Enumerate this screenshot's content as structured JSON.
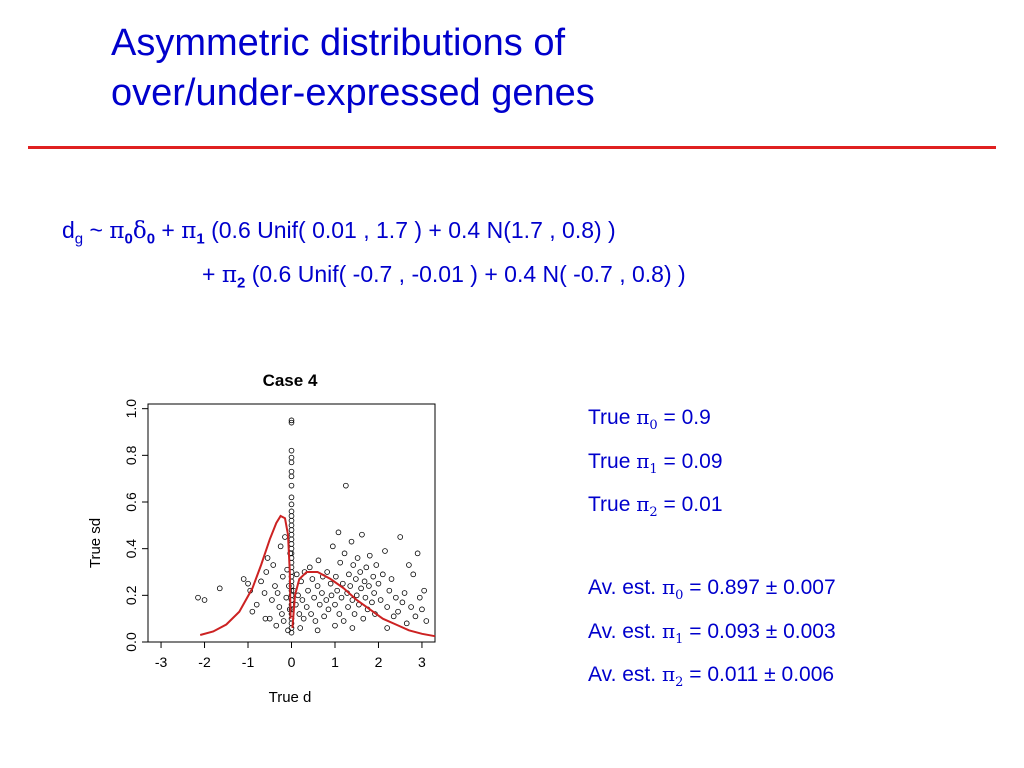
{
  "slide": {
    "title_line1": "Asymmetric distributions of",
    "title_line2": "over/under-expressed genes",
    "accent_color": "#0000cc",
    "rule_color": "#e02020"
  },
  "formula": {
    "d": "d",
    "g": "g",
    "tilde": "~",
    "pi": "π",
    "delta": "δ",
    "sub0": "0",
    "sub1": "1",
    "sub2": "2",
    "plus": "+",
    "term1": "(0.6 Unif( 0.01 , 1.7 ) + 0.4 N(1.7 , 0.8) )",
    "term2": "(0.6 Unif( -0.7 , -0.01 ) + 0.4 N( -0.7 , 0.8) )"
  },
  "true_values": [
    {
      "prefix": "True",
      "sub": "0",
      "eq": "= 0.9"
    },
    {
      "prefix": "True",
      "sub": "1",
      "eq": "= 0.09"
    },
    {
      "prefix": "True",
      "sub": "2",
      "eq": "= 0.01"
    }
  ],
  "estimates": [
    {
      "prefix": "Av. est.",
      "sub": "0",
      "eq": "= 0.897",
      "pm": "± 0.007"
    },
    {
      "prefix": "Av. est.",
      "sub": "1",
      "eq": "= 0.093",
      "pm": "± 0.003"
    },
    {
      "prefix": "Av. est.",
      "sub": "2",
      "eq": "= 0.011",
      "pm": "± 0.006"
    }
  ],
  "chart_data": {
    "type": "scatter",
    "title": "Case 4",
    "xlabel": "True d",
    "ylabel": "True sd",
    "xlim": [
      -3.3,
      3.3
    ],
    "ylim": [
      0,
      1.02
    ],
    "x_ticks": [
      "-3",
      "-2",
      "-1",
      "0",
      "1",
      "2",
      "3"
    ],
    "y_ticks": [
      "0.0",
      "0.2",
      "0.4",
      "0.6",
      "0.8",
      "1.0"
    ],
    "grid": false,
    "point_color": "#000000",
    "curve_color": "#cc2222",
    "points": [
      [
        -2.15,
        0.19
      ],
      [
        -2.0,
        0.18
      ],
      [
        -1.65,
        0.23
      ],
      [
        -1.1,
        0.27
      ],
      [
        -1.0,
        0.25
      ],
      [
        -0.95,
        0.22
      ],
      [
        -0.9,
        0.13
      ],
      [
        -0.8,
        0.16
      ],
      [
        -0.7,
        0.26
      ],
      [
        -0.62,
        0.21
      ],
      [
        -0.58,
        0.3
      ],
      [
        -0.55,
        0.36
      ],
      [
        -0.5,
        0.1
      ],
      [
        -0.45,
        0.18
      ],
      [
        -0.42,
        0.33
      ],
      [
        -0.38,
        0.24
      ],
      [
        -0.35,
        0.07
      ],
      [
        -0.32,
        0.21
      ],
      [
        -0.28,
        0.15
      ],
      [
        -0.25,
        0.41
      ],
      [
        -0.22,
        0.12
      ],
      [
        -0.2,
        0.28
      ],
      [
        -0.18,
        0.09
      ],
      [
        -0.15,
        0.45
      ],
      [
        -0.12,
        0.19
      ],
      [
        -0.1,
        0.31
      ],
      [
        -0.08,
        0.05
      ],
      [
        -0.06,
        0.24
      ],
      [
        -0.04,
        0.14
      ],
      [
        -0.03,
        0.38
      ],
      [
        0.0,
        0.94
      ],
      [
        0.0,
        0.95
      ],
      [
        0.0,
        0.82
      ],
      [
        0.0,
        0.79
      ],
      [
        0.0,
        0.77
      ],
      [
        0.0,
        0.73
      ],
      [
        0.0,
        0.71
      ],
      [
        0.0,
        0.67
      ],
      [
        0.0,
        0.62
      ],
      [
        0.0,
        0.59
      ],
      [
        0.0,
        0.56
      ],
      [
        0.0,
        0.54
      ],
      [
        0.0,
        0.52
      ],
      [
        0.0,
        0.5
      ],
      [
        0.0,
        0.48
      ],
      [
        0.0,
        0.46
      ],
      [
        0.0,
        0.44
      ],
      [
        0.0,
        0.42
      ],
      [
        0.0,
        0.4
      ],
      [
        0.0,
        0.38
      ],
      [
        0.0,
        0.36
      ],
      [
        0.0,
        0.34
      ],
      [
        0.0,
        0.32
      ],
      [
        0.0,
        0.3
      ],
      [
        0.0,
        0.28
      ],
      [
        0.0,
        0.26
      ],
      [
        0.0,
        0.24
      ],
      [
        0.0,
        0.22
      ],
      [
        0.0,
        0.2
      ],
      [
        0.0,
        0.18
      ],
      [
        0.0,
        0.16
      ],
      [
        0.0,
        0.14
      ],
      [
        0.0,
        0.12
      ],
      [
        0.0,
        0.1
      ],
      [
        0.0,
        0.08
      ],
      [
        0.0,
        0.06
      ],
      [
        0.0,
        0.04
      ],
      [
        0.05,
        0.22
      ],
      [
        0.1,
        0.16
      ],
      [
        0.12,
        0.29
      ],
      [
        0.15,
        0.2
      ],
      [
        0.18,
        0.12
      ],
      [
        0.22,
        0.26
      ],
      [
        0.25,
        0.18
      ],
      [
        0.28,
        0.1
      ],
      [
        0.3,
        0.3
      ],
      [
        0.35,
        0.15
      ],
      [
        0.38,
        0.22
      ],
      [
        0.42,
        0.32
      ],
      [
        0.45,
        0.12
      ],
      [
        0.48,
        0.27
      ],
      [
        0.52,
        0.19
      ],
      [
        0.55,
        0.09
      ],
      [
        0.6,
        0.24
      ],
      [
        0.62,
        0.35
      ],
      [
        0.65,
        0.16
      ],
      [
        0.7,
        0.21
      ],
      [
        0.72,
        0.28
      ],
      [
        0.75,
        0.11
      ],
      [
        0.8,
        0.18
      ],
      [
        0.82,
        0.3
      ],
      [
        0.85,
        0.14
      ],
      [
        0.9,
        0.25
      ],
      [
        0.92,
        0.2
      ],
      [
        0.95,
        0.41
      ],
      [
        1.0,
        0.16
      ],
      [
        1.02,
        0.28
      ],
      [
        1.05,
        0.22
      ],
      [
        1.08,
        0.47
      ],
      [
        1.1,
        0.12
      ],
      [
        1.12,
        0.34
      ],
      [
        1.15,
        0.19
      ],
      [
        1.18,
        0.25
      ],
      [
        1.2,
        0.09
      ],
      [
        1.22,
        0.38
      ],
      [
        1.25,
        0.67
      ],
      [
        1.28,
        0.21
      ],
      [
        1.3,
        0.15
      ],
      [
        1.32,
        0.29
      ],
      [
        1.35,
        0.24
      ],
      [
        1.38,
        0.43
      ],
      [
        1.4,
        0.18
      ],
      [
        1.42,
        0.33
      ],
      [
        1.45,
        0.12
      ],
      [
        1.48,
        0.27
      ],
      [
        1.5,
        0.2
      ],
      [
        1.52,
        0.36
      ],
      [
        1.55,
        0.16
      ],
      [
        1.58,
        0.3
      ],
      [
        1.6,
        0.23
      ],
      [
        1.62,
        0.46
      ],
      [
        1.65,
        0.1
      ],
      [
        1.68,
        0.26
      ],
      [
        1.7,
        0.19
      ],
      [
        1.72,
        0.32
      ],
      [
        1.75,
        0.14
      ],
      [
        1.78,
        0.24
      ],
      [
        1.8,
        0.37
      ],
      [
        1.85,
        0.17
      ],
      [
        1.88,
        0.28
      ],
      [
        1.9,
        0.21
      ],
      [
        1.92,
        0.12
      ],
      [
        1.95,
        0.33
      ],
      [
        2.0,
        0.25
      ],
      [
        2.05,
        0.18
      ],
      [
        2.1,
        0.29
      ],
      [
        2.15,
        0.39
      ],
      [
        2.2,
        0.15
      ],
      [
        2.25,
        0.22
      ],
      [
        2.3,
        0.27
      ],
      [
        2.35,
        0.11
      ],
      [
        2.4,
        0.19
      ],
      [
        2.45,
        0.13
      ],
      [
        2.5,
        0.45
      ],
      [
        2.55,
        0.17
      ],
      [
        2.6,
        0.21
      ],
      [
        2.65,
        0.08
      ],
      [
        2.7,
        0.33
      ],
      [
        2.75,
        0.15
      ],
      [
        2.8,
        0.29
      ],
      [
        2.85,
        0.11
      ],
      [
        2.9,
        0.38
      ],
      [
        2.95,
        0.19
      ],
      [
        3.0,
        0.14
      ],
      [
        3.05,
        0.22
      ],
      [
        3.1,
        0.09
      ],
      [
        0.6,
        0.05
      ],
      [
        1.0,
        0.07
      ],
      [
        1.4,
        0.06
      ],
      [
        -0.6,
        0.1
      ],
      [
        2.2,
        0.06
      ],
      [
        0.2,
        0.06
      ]
    ],
    "curves": [
      {
        "name": "",
        "points": [
          [
            -2.1,
            0.03
          ],
          [
            -1.8,
            0.045
          ],
          [
            -1.5,
            0.075
          ],
          [
            -1.2,
            0.13
          ],
          [
            -0.9,
            0.23
          ],
          [
            -0.7,
            0.33
          ],
          [
            -0.5,
            0.44
          ],
          [
            -0.35,
            0.51
          ],
          [
            -0.25,
            0.54
          ],
          [
            -0.15,
            0.53
          ],
          [
            -0.08,
            0.46
          ],
          [
            -0.04,
            0.3
          ],
          [
            -0.02,
            0.1
          ]
        ]
      },
      {
        "name": "",
        "points": [
          [
            0.02,
            0.06
          ],
          [
            0.08,
            0.2
          ],
          [
            0.18,
            0.27
          ],
          [
            0.35,
            0.3
          ],
          [
            0.6,
            0.3
          ],
          [
            0.9,
            0.27
          ],
          [
            1.2,
            0.23
          ],
          [
            1.5,
            0.18
          ],
          [
            1.8,
            0.14
          ],
          [
            2.1,
            0.1
          ],
          [
            2.4,
            0.075
          ],
          [
            2.7,
            0.05
          ],
          [
            3.0,
            0.035
          ],
          [
            3.3,
            0.025
          ]
        ]
      }
    ]
  }
}
